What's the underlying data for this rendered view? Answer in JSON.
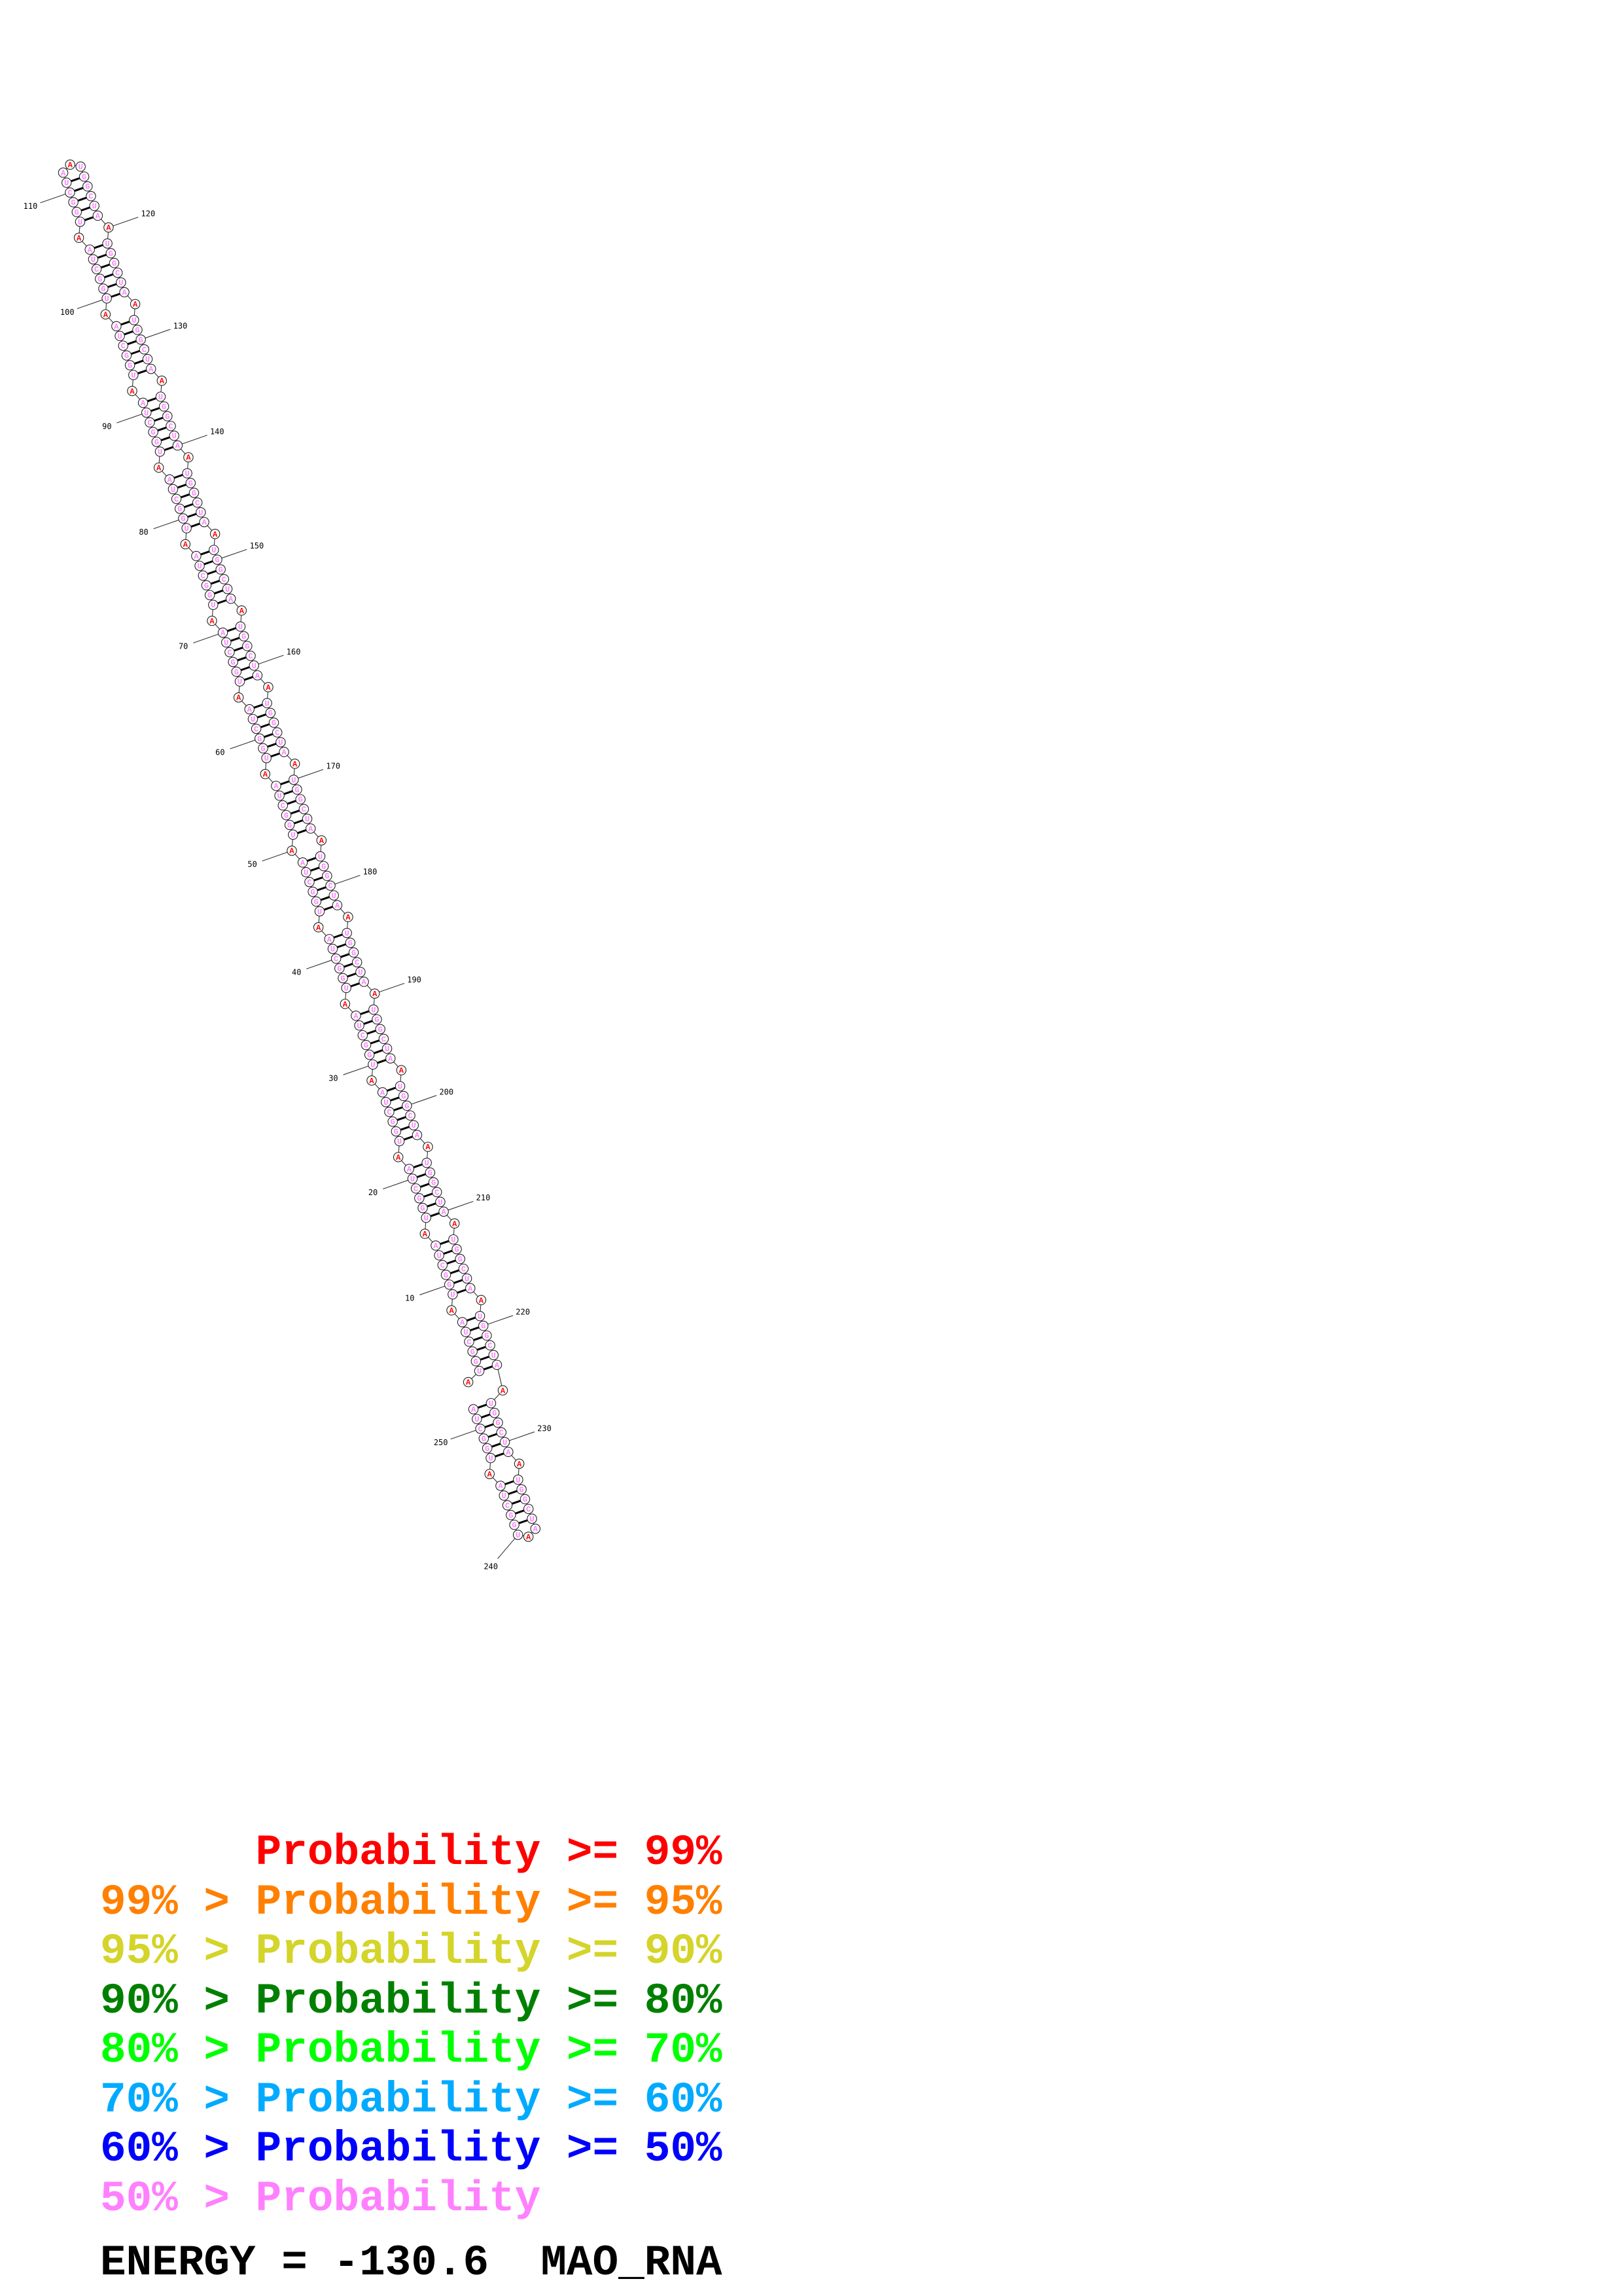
{
  "structure": {
    "sequence": "AUGGCUAAUGGCUAAUGGCUAAUGGCUAAUGGCUAAUGGCUAAUGGCUAAUGGCUAAUGGCUAAUGGCUAAUGGCUAAUGGCUAAUGGCUAAUGGCUAAUGGCUAAUGGCUAAUGGCUAAUGGCUAAUGGCUAAUGGCUAAUGGCUAAUGGCUAAUGGCUAAUGGCUAAUGGCUAAUGGCUAAUGGCUAAUGGCUAAUGGCUAAUGGCUAAUGGCUAAUGGCUAAUGGCUAAUGGCUAAUGGCUAAUGGCUA",
    "probability_class": "rpppppprpppppprpppppprpppppprpppppprpppppprpppppprpppppprpppppprpppppprpppppprpppppprpppppprpppppprpppppprpppppprpppppprpppppprpppppprpppppprpppppprpppppprpppppprpppppprpppppprpppppprpppppprpppppprpppppprpppppprpppppprpppppprpppppprpppppprpppppprpppppp",
    "class_colors": {
      "r": "#ff0000",
      "p": "#ff80ff"
    },
    "helices": [
      {
        "i": 2,
        "j": 224,
        "length": 6
      },
      {
        "i": 9,
        "j": 217,
        "length": 6
      },
      {
        "i": 16,
        "j": 210,
        "length": 6
      },
      {
        "i": 23,
        "j": 203,
        "length": 6
      },
      {
        "i": 30,
        "j": 196,
        "length": 6
      },
      {
        "i": 37,
        "j": 189,
        "length": 6
      },
      {
        "i": 44,
        "j": 182,
        "length": 6
      },
      {
        "i": 51,
        "j": 175,
        "length": 6
      },
      {
        "i": 58,
        "j": 168,
        "length": 6
      },
      {
        "i": 65,
        "j": 161,
        "length": 6
      },
      {
        "i": 72,
        "j": 154,
        "length": 6
      },
      {
        "i": 79,
        "j": 147,
        "length": 6
      },
      {
        "i": 86,
        "j": 140,
        "length": 6
      },
      {
        "i": 93,
        "j": 133,
        "length": 6
      },
      {
        "i": 100,
        "j": 126,
        "length": 6
      },
      {
        "i": 107,
        "j": 119,
        "length": 5
      },
      {
        "i": 226,
        "j": 252,
        "length": 6
      },
      {
        "i": 233,
        "j": 245,
        "length": 5
      }
    ],
    "position_labels": [
      "10",
      "20",
      "30",
      "40",
      "50",
      "60",
      "70",
      "80",
      "90",
      "100",
      "110",
      "120",
      "130",
      "140",
      "150",
      "160",
      "170",
      "180",
      "190",
      "200",
      "210",
      "220",
      "230",
      "240",
      "250"
    ]
  },
  "legend": [
    {
      "prefix": "",
      "label": "Probability",
      "suffix": " >= 99%",
      "color": "#ff0000"
    },
    {
      "prefix": "99% > ",
      "label": "Probability",
      "suffix": " >= 95%",
      "color": "#ff8000"
    },
    {
      "prefix": "95% > ",
      "label": "Probability",
      "suffix": " >= 90%",
      "color": "#d4d42a"
    },
    {
      "prefix": "90% > ",
      "label": "Probability",
      "suffix": " >= 80%",
      "color": "#008000"
    },
    {
      "prefix": "80% > ",
      "label": "Probability",
      "suffix": " >= 70%",
      "color": "#00ff00"
    },
    {
      "prefix": "70% > ",
      "label": "Probability",
      "suffix": " >= 60%",
      "color": "#00aaff"
    },
    {
      "prefix": "60% > ",
      "label": "Probability",
      "suffix": " >= 50%",
      "color": "#0000ff"
    },
    {
      "prefix": "50% > ",
      "label": "Probability",
      "suffix": "",
      "color": "#ff80ff"
    }
  ],
  "footer": {
    "energy_text": "ENERGY = -130.6",
    "name": "MAO_RNA"
  }
}
